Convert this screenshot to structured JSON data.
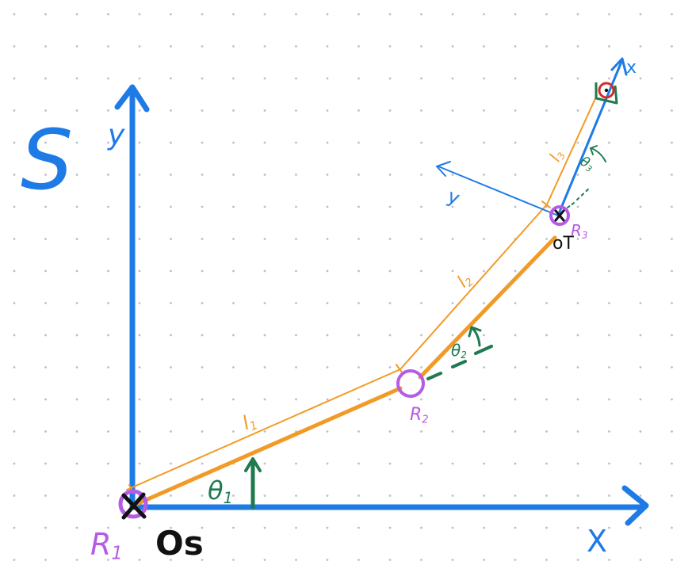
{
  "colors": {
    "blue": "#1e7be6",
    "orange": "#f29a27",
    "purple": "#b55be6",
    "green": "#1f7a4f",
    "red": "#d62b2b",
    "black": "#111111",
    "dot": "#b9bec8"
  },
  "labels": {
    "frame_s": "S",
    "axis_y": "y",
    "axis_x": "X",
    "origin_s": "Os",
    "origin_t": "oT",
    "tool_x": "x",
    "tool_y": "y",
    "joint_1": "R1",
    "joint_2": "R2",
    "joint_3": "R3",
    "link_1": "l1",
    "link_2": "l2",
    "link_3": "l3",
    "angle_1": "θ1",
    "angle_2": "θ2",
    "angle_3": "θ3"
  },
  "icons": {
    "origin_marker": "x-mark-icon",
    "joint": "circle-icon",
    "end_effector": "circled-dot-icon"
  }
}
